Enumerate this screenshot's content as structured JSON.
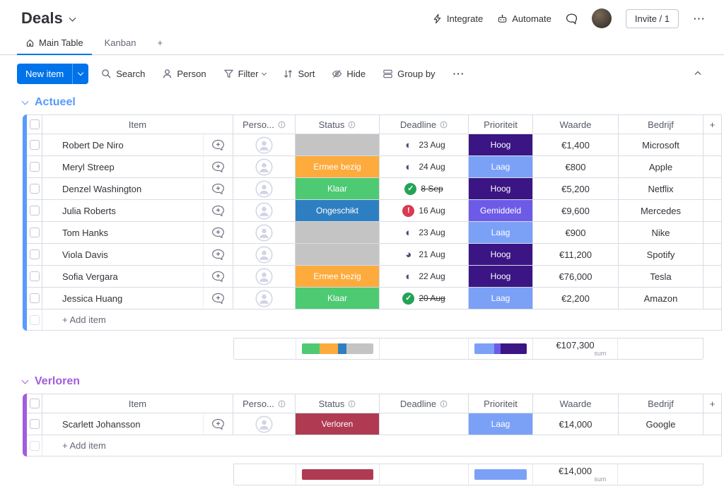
{
  "header": {
    "title": "Deals",
    "integrate": "Integrate",
    "automate": "Automate",
    "invite": "Invite / 1",
    "more": "⋯"
  },
  "tabs": {
    "main_table": "Main Table",
    "kanban": "Kanban",
    "add_tab": "+"
  },
  "toolbar": {
    "new_item": "New item",
    "search": "Search",
    "person": "Person",
    "filter": "Filter",
    "sort": "Sort",
    "hide": "Hide",
    "group_by": "Group by",
    "more": "⋯"
  },
  "columns": {
    "item": "Item",
    "person": "Perso...",
    "status": "Status",
    "deadline": "Deadline",
    "priority": "Prioriteit",
    "value": "Waarde",
    "company": "Bedrijf",
    "add_column": "+"
  },
  "icons": {
    "integrate": "lightning",
    "automate": "robot",
    "updates": "speech-bubble",
    "home": "house",
    "search": "magnifier",
    "person": "person-silhouette",
    "filter": "funnel",
    "sort": "arrows-up-down",
    "hide": "eye-slash",
    "group_by": "rows",
    "collapse": "chevron-up-circle",
    "info": "circled-i",
    "add_conversation": "speech-bubble-plus",
    "avatar_placeholder": "person-circle"
  },
  "groups": [
    {
      "name": "Actueel",
      "color": "#579bfc",
      "add_item": "+ Add item",
      "rows": [
        {
          "item": "Robert De Niro",
          "status_label": "",
          "status_color": "#c4c4c4",
          "dl_glyph": "◐",
          "dl_fg": "#42526e",
          "dl_bg": "",
          "dl_kind": "pie",
          "deadline_text": "23 Aug",
          "deadline_struck": "false",
          "priority_label": "Hoog",
          "priority_color": "#3a1583",
          "value": "€1,400",
          "company": "Microsoft"
        },
        {
          "item": "Meryl Streep",
          "status_label": "Ermee bezig",
          "status_color": "#fdab3d",
          "dl_glyph": "◐",
          "dl_fg": "#42526e",
          "dl_bg": "",
          "dl_kind": "pie",
          "deadline_text": "24 Aug",
          "deadline_struck": "false",
          "priority_label": "Laag",
          "priority_color": "#7ba1f7",
          "value": "€800",
          "company": "Apple"
        },
        {
          "item": "Denzel Washington",
          "status_label": "Klaar",
          "status_color": "#4eca73",
          "dl_glyph": "✓",
          "dl_fg": "#ffffff",
          "dl_bg": "#23a455",
          "dl_kind": "badge",
          "deadline_text": "8 Sep",
          "deadline_struck": "true",
          "priority_label": "Hoog",
          "priority_color": "#3a1583",
          "value": "€5,200",
          "company": "Netflix"
        },
        {
          "item": "Julia Roberts",
          "status_label": "Ongeschikt",
          "status_color": "#2e7fc1",
          "dl_glyph": "!",
          "dl_fg": "#ffffff",
          "dl_bg": "#d83a52",
          "dl_kind": "badge",
          "deadline_text": "16 Aug",
          "deadline_struck": "false",
          "priority_label": "Gemiddeld",
          "priority_color": "#6d5be8",
          "value": "€9,600",
          "company": "Mercedes"
        },
        {
          "item": "Tom Hanks",
          "status_label": "",
          "status_color": "#c4c4c4",
          "dl_glyph": "◐",
          "dl_fg": "#42526e",
          "dl_bg": "",
          "dl_kind": "pie",
          "deadline_text": "23 Aug",
          "deadline_struck": "false",
          "priority_label": "Laag",
          "priority_color": "#7ba1f7",
          "value": "€900",
          "company": "Nike"
        },
        {
          "item": "Viola Davis",
          "status_label": "",
          "status_color": "#c4c4c4",
          "dl_glyph": "◕",
          "dl_fg": "#42526e",
          "dl_bg": "",
          "dl_kind": "pie",
          "deadline_text": "21 Aug",
          "deadline_struck": "false",
          "priority_label": "Hoog",
          "priority_color": "#3a1583",
          "value": "€11,200",
          "company": "Spotify"
        },
        {
          "item": "Sofia Vergara",
          "status_label": "Ermee bezig",
          "status_color": "#fdab3d",
          "dl_glyph": "◐",
          "dl_fg": "#42526e",
          "dl_bg": "",
          "dl_kind": "pie",
          "deadline_text": "22 Aug",
          "deadline_struck": "false",
          "priority_label": "Hoog",
          "priority_color": "#3a1583",
          "value": "€76,000",
          "company": "Tesla"
        },
        {
          "item": "Jessica Huang",
          "status_label": "Klaar",
          "status_color": "#4eca73",
          "dl_glyph": "✓",
          "dl_fg": "#ffffff",
          "dl_bg": "#23a455",
          "dl_kind": "badge",
          "deadline_text": "20 Aug",
          "deadline_struck": "true",
          "priority_label": "Laag",
          "priority_color": "#7ba1f7",
          "value": "€2,200",
          "company": "Amazon"
        }
      ],
      "summary": {
        "sum": "€107,300",
        "sum_label": "sum",
        "status_bar": [
          {
            "color": "#4eca73",
            "pct": 25
          },
          {
            "color": "#fdab3d",
            "pct": 25
          },
          {
            "color": "#2e7fc1",
            "pct": 12.5
          },
          {
            "color": "#c4c4c4",
            "pct": 37.5
          }
        ],
        "priority_bar": [
          {
            "color": "#7ba1f7",
            "pct": 37.5
          },
          {
            "color": "#6d5be8",
            "pct": 12.5
          },
          {
            "color": "#3a1583",
            "pct": 50
          }
        ]
      }
    },
    {
      "name": "Verloren",
      "color": "#a25ddc",
      "add_item": "+ Add item",
      "rows": [
        {
          "item": "Scarlett Johansson",
          "status_label": "Verloren",
          "status_color": "#b03a51",
          "dl_glyph": "",
          "dl_fg": "",
          "dl_bg": "",
          "dl_kind": "none",
          "deadline_text": "",
          "deadline_struck": "false",
          "priority_label": "Laag",
          "priority_color": "#7ba1f7",
          "value": "€14,000",
          "company": "Google"
        }
      ],
      "summary": {
        "sum": "€14,000",
        "sum_label": "sum",
        "status_bar": [
          {
            "color": "#b03a51",
            "pct": 100
          }
        ],
        "priority_bar": [
          {
            "color": "#7ba1f7",
            "pct": 100
          }
        ]
      }
    }
  ]
}
